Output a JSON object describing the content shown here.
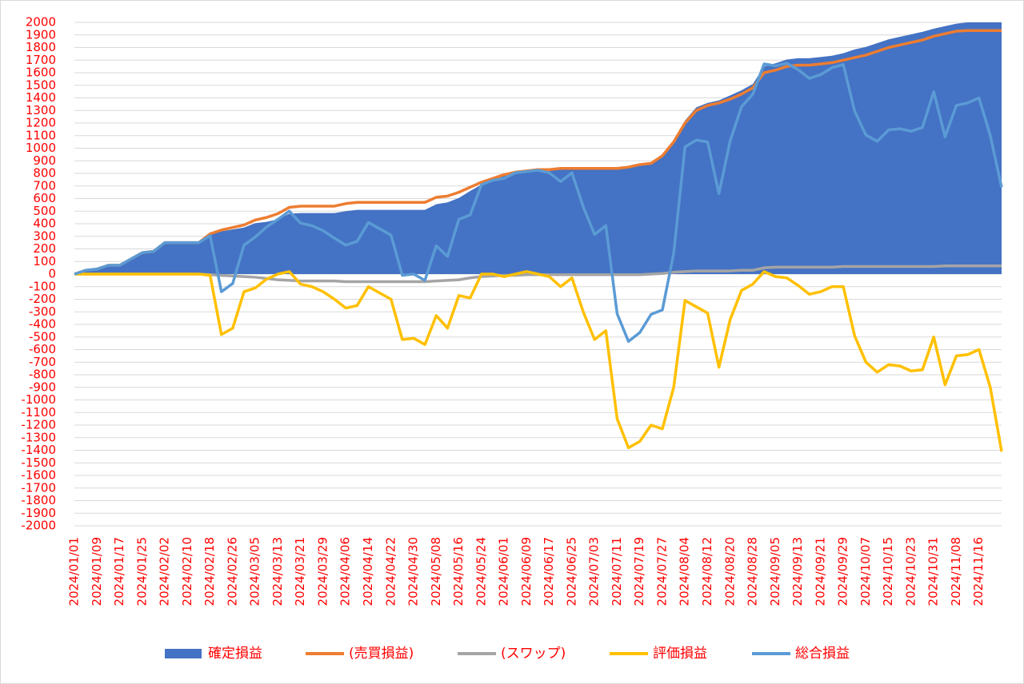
{
  "chart_data": {
    "type": "line",
    "categories": [
      "2024/01/01",
      null,
      "2024/01/09",
      null,
      "2024/01/17",
      null,
      "2024/01/25",
      null,
      "2024/02/02",
      null,
      "2024/02/10",
      null,
      "2024/02/18",
      null,
      "2024/02/26",
      null,
      "2024/03/05",
      null,
      "2024/03/13",
      null,
      "2024/03/21",
      null,
      "2024/03/29",
      null,
      "2024/04/06",
      null,
      "2024/04/14",
      null,
      "2024/04/22",
      null,
      "2024/04/30",
      null,
      "2024/05/08",
      null,
      "2024/05/16",
      null,
      "2024/05/24",
      null,
      "2024/06/01",
      null,
      "2024/06/09",
      null,
      "2024/06/17",
      null,
      "2024/06/25",
      null,
      "2024/07/03",
      null,
      "2024/07/11",
      null,
      "2024/07/19",
      null,
      "2024/07/27",
      null,
      "2024/08/04",
      null,
      "2024/08/12",
      null,
      "2024/08/20",
      null,
      "2024/08/28",
      null,
      "2024/09/05",
      null,
      "2024/09/13",
      null,
      "2024/09/21",
      null,
      "2024/09/29",
      null,
      "2024/10/07",
      null,
      "2024/10/15",
      null,
      "2024/10/23",
      null,
      "2024/10/31",
      null,
      "2024/11/08",
      null,
      "2024/11/16",
      null,
      null
    ],
    "series": [
      {
        "name": "確定損益",
        "type": "area",
        "color": "#4472c4",
        "values": [
          0,
          30,
          40,
          70,
          70,
          120,
          170,
          180,
          250,
          250,
          250,
          250,
          315,
          340,
          355,
          370,
          405,
          415,
          435,
          480,
          485,
          485,
          485,
          485,
          500,
          510,
          510,
          510,
          510,
          510,
          510,
          510,
          555,
          570,
          605,
          660,
          710,
          745,
          780,
          800,
          810,
          825,
          825,
          835,
          835,
          835,
          835,
          835,
          835,
          845,
          870,
          880,
          945,
          1065,
          1220,
          1325,
          1360,
          1380,
          1420,
          1460,
          1510,
          1650,
          1675,
          1705,
          1715,
          1715,
          1725,
          1735,
          1755,
          1785,
          1805,
          1835,
          1865,
          1885,
          1905,
          1925,
          1950,
          1970,
          1990,
          2000,
          2000,
          2000,
          2000
        ]
      },
      {
        "name": "(売買損益)",
        "type": "line",
        "color": "#ed7d31",
        "values": [
          0,
          30,
          40,
          70,
          70,
          120,
          170,
          180,
          250,
          250,
          250,
          250,
          320,
          350,
          370,
          390,
          430,
          450,
          480,
          530,
          540,
          540,
          540,
          540,
          560,
          570,
          570,
          570,
          570,
          570,
          570,
          570,
          610,
          620,
          650,
          690,
          730,
          760,
          790,
          810,
          820,
          830,
          830,
          840,
          840,
          840,
          840,
          840,
          840,
          850,
          870,
          880,
          940,
          1050,
          1200,
          1300,
          1340,
          1360,
          1390,
          1430,
          1480,
          1600,
          1620,
          1650,
          1660,
          1660,
          1670,
          1680,
          1700,
          1720,
          1740,
          1770,
          1800,
          1820,
          1840,
          1860,
          1890,
          1910,
          1930,
          1935,
          1935,
          1935,
          1935
        ]
      },
      {
        "name": "(スワップ)",
        "type": "line",
        "color": "#a5a5a5",
        "values": [
          0,
          0,
          0,
          0,
          0,
          0,
          0,
          0,
          0,
          0,
          0,
          0,
          -5,
          -10,
          -15,
          -20,
          -25,
          -35,
          -45,
          -50,
          -55,
          -55,
          -55,
          -55,
          -60,
          -60,
          -60,
          -60,
          -60,
          -60,
          -60,
          -60,
          -55,
          -50,
          -45,
          -30,
          -20,
          -15,
          -10,
          -10,
          -5,
          -5,
          -5,
          -5,
          -5,
          -5,
          -5,
          -5,
          -5,
          -5,
          -5,
          0,
          5,
          15,
          20,
          25,
          25,
          25,
          25,
          30,
          30,
          50,
          55,
          55,
          55,
          55,
          55,
          55,
          60,
          60,
          60,
          60,
          60,
          60,
          60,
          60,
          60,
          65,
          65,
          65,
          65,
          65,
          65
        ]
      },
      {
        "name": "評価損益",
        "type": "line",
        "color": "#ffc000",
        "values": [
          0,
          0,
          0,
          0,
          0,
          0,
          0,
          0,
          0,
          0,
          0,
          0,
          -10,
          -480,
          -430,
          -140,
          -110,
          -40,
          0,
          20,
          -80,
          -100,
          -140,
          -200,
          -270,
          -250,
          -100,
          -150,
          -200,
          -520,
          -510,
          -560,
          -330,
          -430,
          -170,
          -190,
          0,
          0,
          -20,
          0,
          20,
          0,
          -20,
          -100,
          -30,
          -300,
          -520,
          -450,
          -1150,
          -1380,
          -1330,
          -1200,
          -1230,
          -900,
          -210,
          -260,
          -310,
          -740,
          -360,
          -130,
          -80,
          20,
          -20,
          -30,
          -90,
          -160,
          -140,
          -100,
          -100,
          -490,
          -700,
          -780,
          -720,
          -730,
          -770,
          -760,
          -500,
          -880,
          -650,
          -640,
          -600,
          -900,
          -1410
        ]
      },
      {
        "name": "総合損益",
        "type": "line",
        "color": "#5b9bd5",
        "values": [
          0,
          30,
          40,
          70,
          70,
          120,
          170,
          180,
          250,
          250,
          250,
          250,
          305,
          -140,
          -75,
          230,
          295,
          375,
          435,
          500,
          405,
          385,
          345,
          285,
          230,
          260,
          410,
          360,
          310,
          -10,
          0,
          -50,
          225,
          140,
          435,
          470,
          710,
          745,
          760,
          805,
          815,
          825,
          805,
          735,
          805,
          535,
          315,
          385,
          -315,
          -535,
          -465,
          -320,
          -285,
          165,
          1010,
          1065,
          1050,
          640,
          1060,
          1330,
          1430,
          1670,
          1655,
          1675,
          1625,
          1555,
          1585,
          1640,
          1665,
          1295,
          1105,
          1055,
          1145,
          1155,
          1135,
          1165,
          1450,
          1090,
          1340,
          1360,
          1400,
          1100,
          690
        ]
      }
    ],
    "ylim": [
      -2000,
      2000
    ],
    "yticks": [
      -2000,
      -1900,
      -1800,
      -1700,
      -1600,
      -1500,
      -1400,
      -1300,
      -1200,
      -1100,
      -1000,
      -900,
      -800,
      -700,
      -600,
      -500,
      -400,
      -300,
      -200,
      -100,
      0,
      100,
      200,
      300,
      400,
      500,
      600,
      700,
      800,
      900,
      1000,
      1100,
      1200,
      1300,
      1400,
      1500,
      1600,
      1700,
      1800,
      1900,
      2000
    ],
    "grid": true
  }
}
